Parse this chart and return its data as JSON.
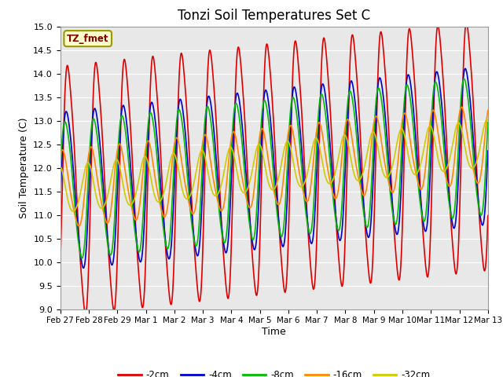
{
  "title": "Tonzi Soil Temperatures Set C",
  "xlabel": "Time",
  "ylabel": "Soil Temperature (C)",
  "ylim": [
    9.0,
    15.0
  ],
  "yticks": [
    9.0,
    9.5,
    10.0,
    10.5,
    11.0,
    11.5,
    12.0,
    12.5,
    13.0,
    13.5,
    14.0,
    14.5,
    15.0
  ],
  "legend_label": "TZ_fmet",
  "series_labels": [
    "-2cm",
    "-4cm",
    "-8cm",
    "-16cm",
    "-32cm"
  ],
  "series_colors": [
    "#dd0000",
    "#0000cc",
    "#00bb00",
    "#ff8800",
    "#cccc00"
  ],
  "line_width": 1.2,
  "x_tick_labels": [
    "Feb 27",
    "Feb 28",
    "Feb 29",
    "Mar 1",
    "Mar 2",
    "Mar 3",
    "Mar 4",
    "Mar 5",
    "Mar 6",
    "Mar 7",
    "Mar 8",
    "Mar 9",
    "Mar 10",
    "Mar 11",
    "Mar 12",
    "Mar 13"
  ],
  "n_points": 2000,
  "start_day": 0,
  "end_day": 15,
  "fig_width": 6.4,
  "fig_height": 4.8,
  "dpi": 100
}
